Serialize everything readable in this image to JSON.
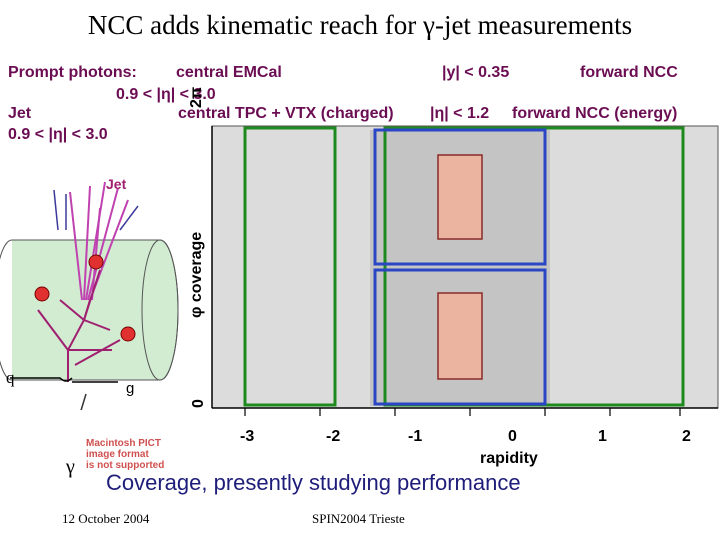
{
  "slide": {
    "title": "NCC adds kinematic reach for γ-jet measurements",
    "prompt_photons_label": "Prompt photons:",
    "photon_central": "central EMCal",
    "photon_y_range": "|y| < 0.35",
    "photon_forward": "forward NCC",
    "photon_eta_range": "0.9 < |η| < 3.0",
    "jet_label": "Jet",
    "jet_central": "central TPC + VTX (charged)",
    "jet_eta_central": "|η| < 1.2",
    "jet_forward": "forward NCC (energy)",
    "jet_eta_range": "0.9 < |η| < 3.0",
    "subtitle": "Coverage, presently studying performance",
    "footer_date": "12 October 2004",
    "footer_venue": "SPIN2004 Trieste"
  },
  "illustration": {
    "jet_text": "Jet",
    "quark_label": "q",
    "gluon_label": "g",
    "photon_label": "γ",
    "pict_notice": [
      "Macintosh PICT",
      "image format",
      "is not supported"
    ]
  },
  "plot": {
    "ylabel": "φ coverage",
    "ytick_top": "2π",
    "ytick_bottom": "0",
    "xlabel": "rapidity",
    "xticks": [
      "-3",
      "-2",
      "-1",
      "0",
      "1",
      "2"
    ]
  },
  "colors": {
    "title_text": "#000000",
    "photon_text": "#6b0d52",
    "jet_text": "#1f1d7a",
    "green_region": "#1e8a1e",
    "blue_region": "#2a46c4",
    "emcal_fill": "#eab4a0",
    "plot_background": "#dcdcdc",
    "inner_background": "#c4c4c4",
    "jet_arrows": "#c042b0",
    "gluon_lines": "#a02070",
    "parton_dots": "#e03030",
    "detector_fill": "#d2ecd2"
  }
}
